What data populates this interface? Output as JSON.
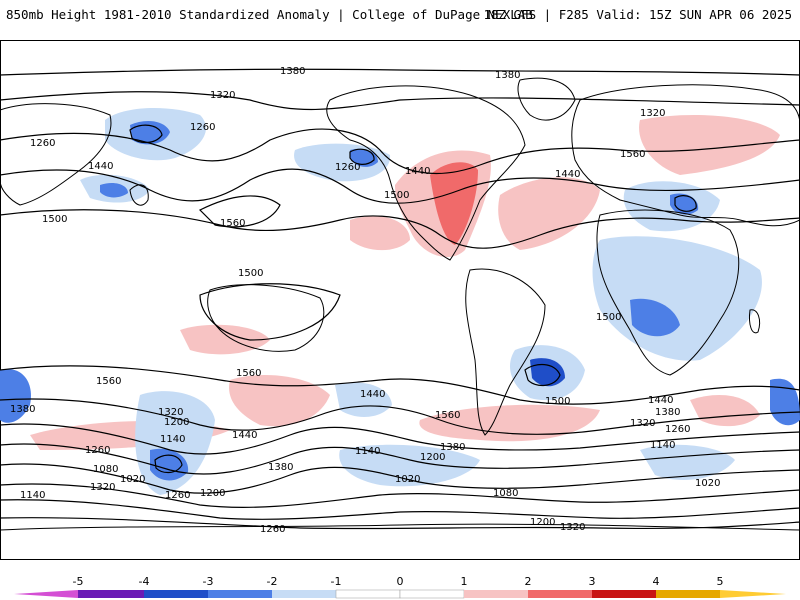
{
  "header": {
    "left": "850mb Height 1981-2010 Standardized Anomaly | College of DuPage NEXLAB",
    "right": "18Z GFS | F285 Valid: 15Z SUN APR 06 2025"
  },
  "colors": {
    "ocean": "#ffffff",
    "land_outline": "#000000",
    "neg1": "#c6dcf5",
    "neg2": "#4d7fe6",
    "neg3": "#1f4ec8",
    "neg4": "#6a1bb5",
    "neg5": "#d44fd4",
    "pos1": "#f7c3c3",
    "pos2": "#f06a6a",
    "pos3": "#c81414",
    "pos4": "#e6a800",
    "pos5": "#ffcc33"
  },
  "colorbar": {
    "ticks": [
      "-5",
      "-4",
      "-3",
      "-2",
      "-1",
      "0",
      "1",
      "2",
      "3",
      "4",
      "5"
    ]
  },
  "contour_labels": [
    "1380",
    "1320",
    "1260",
    "1200",
    "1140",
    "1080",
    "1020",
    "1440",
    "1500",
    "1560"
  ]
}
